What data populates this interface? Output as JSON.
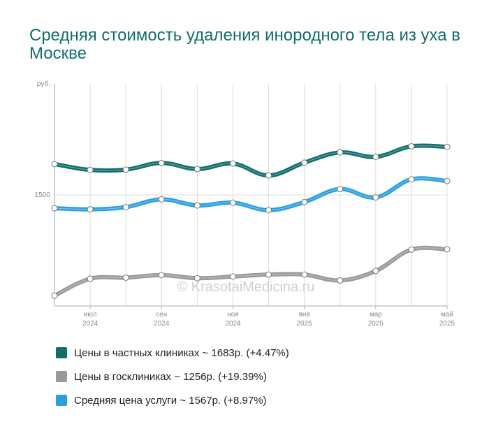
{
  "title": "Средняя стоимость удаления инородного тела из уха в Москве",
  "watermark": "© KrasotaiMedicina.ru",
  "legend": [
    {
      "label": "Цены в частных клиниках ~ 1683р. (+4.47%)",
      "color": "#0f6e6b"
    },
    {
      "label": "Цены в госклиниках ~ 1256р. (+19.39%)",
      "color": "#999999"
    },
    {
      "label": "Средняя цена услуги ~ 1567р. (+8.97%)",
      "color": "#2a9fe0"
    }
  ],
  "chart_data": {
    "type": "line",
    "ylabel": "руб.",
    "ylim": [
      1100,
      1900
    ],
    "yticks": [
      {
        "value": 1500,
        "label": "1500"
      }
    ],
    "x_ticks": [
      {
        "month": "июл",
        "year": "2024"
      },
      {
        "month": "сен",
        "year": "2024"
      },
      {
        "month": "ноя",
        "year": "2024"
      },
      {
        "month": "янв",
        "year": "2025"
      },
      {
        "month": "мар",
        "year": "2025"
      },
      {
        "month": "май",
        "year": "2025"
      }
    ],
    "x": [
      "2024-06",
      "2024-07",
      "2024-08",
      "2024-09",
      "2024-10",
      "2024-11",
      "2024-12",
      "2025-01",
      "2025-02",
      "2025-03",
      "2025-04",
      "2025-05"
    ],
    "grid": true,
    "series": [
      {
        "name": "Цены в частных клиниках ~ 1683р. (+4.47%)",
        "color": "#0f6e6b",
        "values": [
          1611,
          1590,
          1591,
          1615,
          1593,
          1613,
          1570,
          1616,
          1653,
          1637,
          1675,
          1673
        ]
      },
      {
        "name": "Цены в госклиниках ~ 1256р. (+19.39%)",
        "color": "#999999",
        "values": [
          1137,
          1198,
          1202,
          1211,
          1200,
          1206,
          1213,
          1213,
          1192,
          1226,
          1303,
          1304
        ]
      },
      {
        "name": "Средняя цена услуги ~ 1567р. (+8.97%)",
        "color": "#2a9fe0",
        "values": [
          1452,
          1448,
          1456,
          1484,
          1462,
          1472,
          1445,
          1474,
          1521,
          1491,
          1556,
          1550
        ]
      }
    ]
  }
}
